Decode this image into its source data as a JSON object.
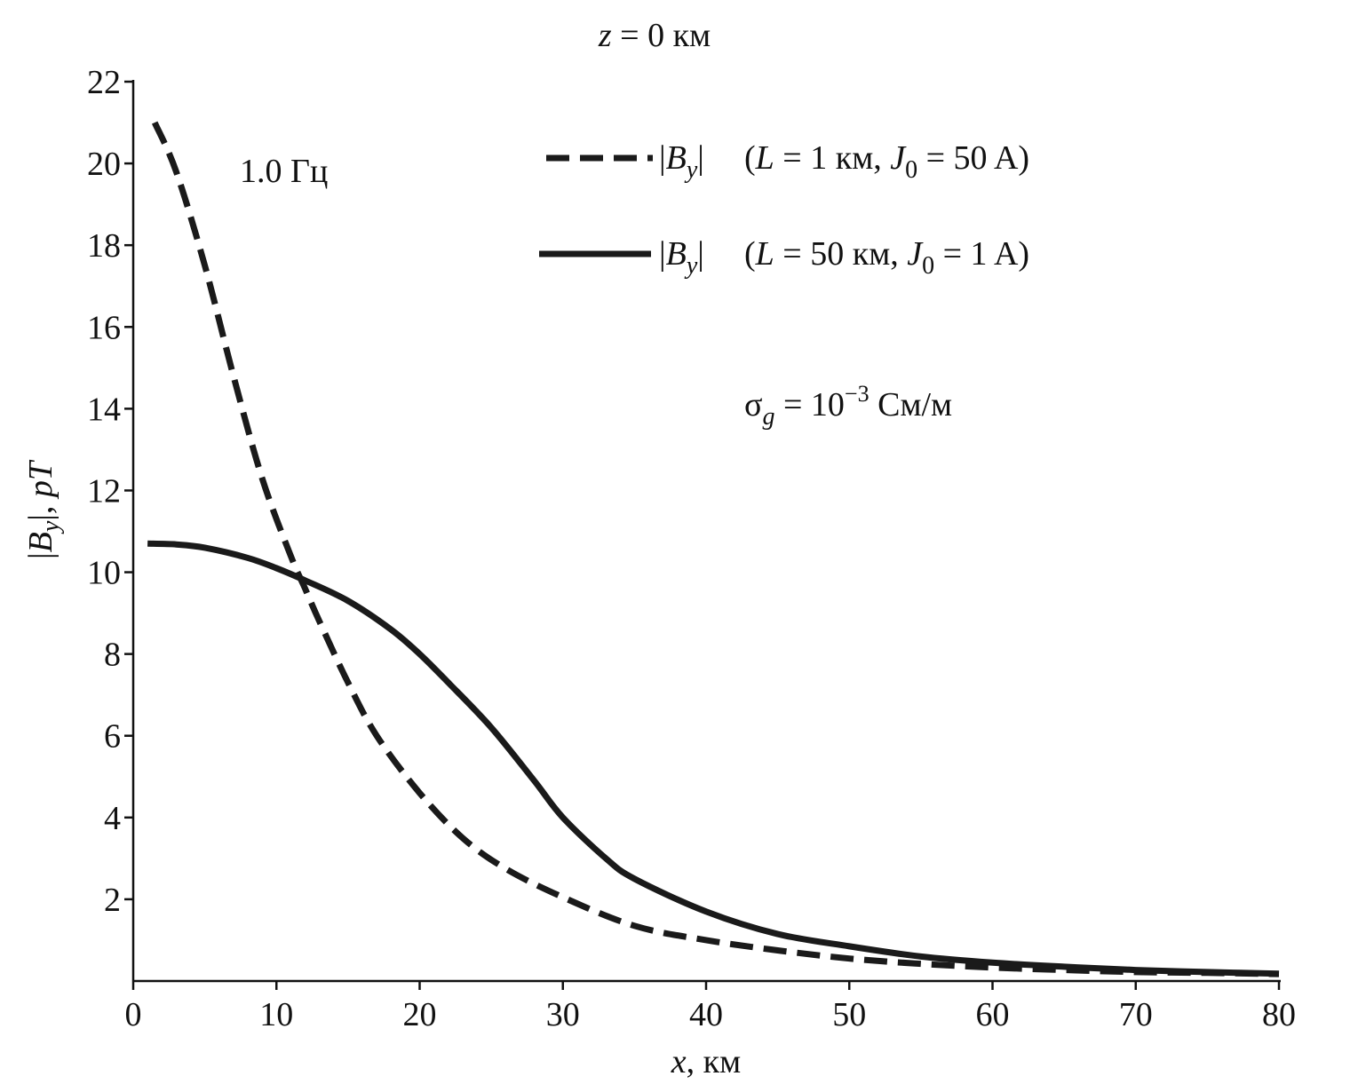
{
  "chart_data": {
    "type": "line",
    "title": "z = 0 км",
    "title_parts": {
      "var": "z",
      "rest": " = 0 км"
    },
    "xlabel": "x, км",
    "xlabel_parts": {
      "var": "x",
      "rest": ", км"
    },
    "ylabel": "|By|, pT",
    "ylabel_parts": {
      "pre": "|",
      "var": "B",
      "sub": "y",
      "post": "|, ",
      "unit": "pT"
    },
    "xlim": [
      0,
      80
    ],
    "ylim": [
      0,
      22
    ],
    "xticks": [
      0,
      10,
      20,
      30,
      40,
      50,
      60,
      70,
      80
    ],
    "yticks": [
      2,
      4,
      6,
      8,
      10,
      12,
      14,
      16,
      18,
      20,
      22
    ],
    "grid": false,
    "legend_position": "top-right",
    "annotations": {
      "frequency": "1.0 Гц",
      "conductivity": {
        "sym": "σ",
        "sub": "g",
        "mid": " = 10",
        "sup": "−3",
        "unit": " См/м"
      }
    },
    "series": [
      {
        "name": "|By|  (L = 1 км, J0 = 50 A)",
        "legend_parts": {
          "pre": "|",
          "var": "B",
          "sub": "y",
          "post": "|",
          "paren_open": "(",
          "L": "L",
          "L_eq": " = 1 км, ",
          "J": "J",
          "J_sub": "0",
          "J_eq": " = 50 A)"
        },
        "style": "dashed",
        "color": "#1a1a1a",
        "x": [
          1.5,
          3,
          5,
          7,
          9,
          11,
          12,
          13,
          15,
          17,
          20,
          23,
          26,
          30,
          35,
          40,
          45,
          50,
          55,
          60,
          65,
          70,
          75,
          80
        ],
        "y": [
          21.0,
          19.8,
          17.5,
          14.8,
          12.3,
          10.4,
          9.6,
          8.8,
          7.3,
          6.0,
          4.6,
          3.5,
          2.75,
          2.05,
          1.35,
          1.0,
          0.75,
          0.55,
          0.42,
          0.33,
          0.27,
          0.22,
          0.2,
          0.17
        ]
      },
      {
        "name": "|By|  (L = 50 км, J0 = 1 A)",
        "legend_parts": {
          "pre": "|",
          "var": "B",
          "sub": "y",
          "post": "|",
          "paren_open": "(",
          "L": "L",
          "L_eq": " = 50 км, ",
          "J": "J",
          "J_sub": "0",
          "J_eq": " = 1 A)"
        },
        "style": "solid",
        "color": "#1a1a1a",
        "x": [
          1,
          3,
          5,
          8,
          10,
          12,
          15,
          18,
          20,
          22,
          25,
          28,
          30,
          33,
          35,
          40,
          45,
          50,
          55,
          60,
          65,
          70,
          75,
          80
        ],
        "y": [
          10.7,
          10.68,
          10.6,
          10.35,
          10.1,
          9.8,
          9.3,
          8.6,
          8.0,
          7.3,
          6.2,
          4.9,
          4.0,
          3.0,
          2.5,
          1.7,
          1.15,
          0.85,
          0.6,
          0.45,
          0.35,
          0.27,
          0.22,
          0.18
        ]
      }
    ]
  }
}
